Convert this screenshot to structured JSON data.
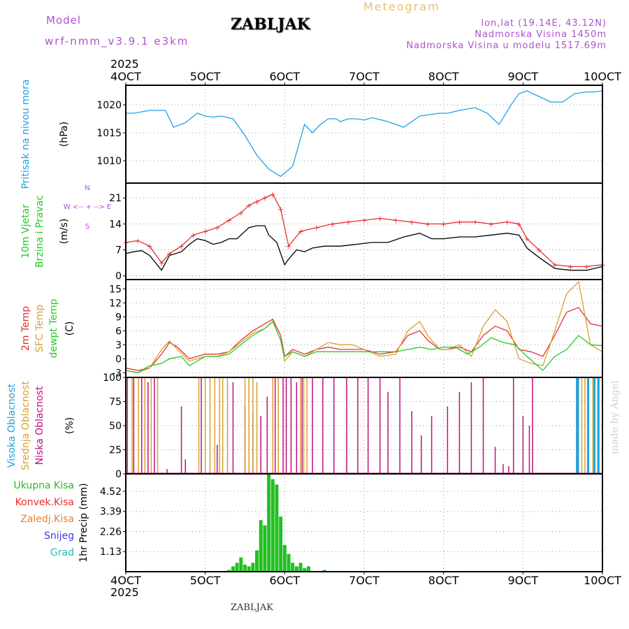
{
  "header": {
    "model_label": "Model",
    "model_name": "wrf-nmm_v3.9.1 e3km",
    "station": "ZABLJAK",
    "title": "Meteogram",
    "lonlat": "lon,lat (19.14E, 43.12N)",
    "elevation": "Nadmorska Visina 1450m",
    "model_elevation": "Nadmorska Visina u modelu 1517.69m",
    "year": "2025",
    "footer_station": "ZABLJAK",
    "watermark": "made by Angel"
  },
  "colors": {
    "pressure": "#1fa3e0",
    "wind_speed": "#000000",
    "gust": "#e83030",
    "t2m": "#e83030",
    "tsfc": "#d9a030",
    "dewpoint": "#22cc22",
    "cloud_high": "#1fa3e0",
    "cloud_mid": "#d9a030",
    "cloud_low": "#c0107a",
    "precip_total": "#22c022",
    "precip_conv": "#e83030",
    "precip_frozen": "#f08030",
    "snow": "#4040e0",
    "hail": "#20c0b0"
  },
  "chart_data": {
    "type": "line",
    "x_ticks": [
      "4OCT",
      "5OCT",
      "6OCT",
      "7OCT",
      "8OCT",
      "9OCT",
      "10OCT"
    ],
    "x_unit": "days",
    "panels": [
      {
        "id": "pressure",
        "ylabels": [
          "Pritisak na nivou mora",
          "(hPa)"
        ],
        "ylim": [
          1006,
          1023.5
        ],
        "yticks": [
          1010,
          1015,
          1020
        ],
        "series": [
          {
            "name": "pressure",
            "x": [
              0,
              0.1,
              0.3,
              0.5,
              0.6,
              0.75,
              0.9,
              1.0,
              1.1,
              1.2,
              1.35,
              1.5,
              1.65,
              1.8,
              1.95,
              2.1,
              2.25,
              2.35,
              2.45,
              2.55,
              2.65,
              2.7,
              2.8,
              2.9,
              3.0,
              3.1,
              3.3,
              3.5,
              3.7,
              3.85,
              3.95,
              4.05,
              4.2,
              4.4,
              4.55,
              4.7,
              4.85,
              4.95,
              5.05,
              5.2,
              5.35,
              5.5,
              5.65,
              5.8,
              5.9,
              6.0
            ],
            "values": [
              1018.5,
              1018.5,
              1019,
              1019,
              1016,
              1016.8,
              1018.5,
              1018,
              1017.8,
              1018,
              1017.5,
              1014.5,
              1011,
              1008.5,
              1007.2,
              1009,
              1016.5,
              1015,
              1016.5,
              1017.5,
              1017.5,
              1017,
              1017.5,
              1017.5,
              1017.3,
              1017.7,
              1017,
              1016,
              1018,
              1018.3,
              1018.5,
              1018.5,
              1019,
              1019.5,
              1018.5,
              1016.5,
              1020,
              1022,
              1022.5,
              1021.5,
              1020.5,
              1020.5,
              1022,
              1022.3,
              1022.3,
              1022.5
            ]
          }
        ]
      },
      {
        "id": "wind",
        "ylabels": [
          "10m Vjetar",
          "Brzina i Pravac",
          "(m/s)"
        ],
        "direction_legend": "N\n^\n|\nW <-- + --> E\n|\nv\nS",
        "ylim": [
          -1,
          25
        ],
        "yticks": [
          0,
          7,
          14,
          21
        ],
        "series": [
          {
            "name": "speed",
            "x": [
              0,
              0.1,
              0.2,
              0.3,
              0.45,
              0.55,
              0.7,
              0.8,
              0.9,
              1.0,
              1.1,
              1.2,
              1.3,
              1.4,
              1.5,
              1.55,
              1.65,
              1.75,
              1.8,
              1.9,
              2.0,
              2.05,
              2.15,
              2.25,
              2.35,
              2.5,
              2.7,
              2.9,
              3.1,
              3.3,
              3.5,
              3.7,
              3.85,
              4.0,
              4.2,
              4.4,
              4.6,
              4.8,
              4.95,
              5.05,
              5.2,
              5.4,
              5.6,
              5.8,
              6.0
            ],
            "values": [
              6,
              6.5,
              6.8,
              5.5,
              1.5,
              5.5,
              6.5,
              8.5,
              10,
              9.5,
              8.5,
              9,
              10,
              10,
              12,
              13,
              13.5,
              13.5,
              11,
              9,
              3,
              4.5,
              7,
              6.5,
              7.5,
              8,
              8,
              8.5,
              9,
              9,
              10.5,
              11.5,
              10,
              10,
              10.5,
              10.5,
              11,
              11.5,
              11,
              7.5,
              5,
              2,
              1.5,
              1.5,
              2.5
            ]
          },
          {
            "name": "gust",
            "x": [
              0,
              0.15,
              0.3,
              0.45,
              0.55,
              0.7,
              0.85,
              1.0,
              1.15,
              1.3,
              1.45,
              1.55,
              1.65,
              1.75,
              1.85,
              1.95,
              2.05,
              2.2,
              2.4,
              2.6,
              2.8,
              3.0,
              3.2,
              3.4,
              3.6,
              3.8,
              4.0,
              4.2,
              4.4,
              4.6,
              4.8,
              4.95,
              5.05,
              5.2,
              5.4,
              5.6,
              5.8,
              6.0
            ],
            "values": [
              9,
              9.5,
              8,
              3.5,
              6,
              8,
              11,
              12,
              13,
              15,
              17,
              19,
              20,
              21,
              22,
              18,
              8,
              12,
              13,
              14,
              14.5,
              15,
              15.5,
              15,
              14.5,
              14,
              14,
              14.5,
              14.5,
              14,
              14.5,
              14,
              10,
              7,
              3,
              2.5,
              2.5,
              3
            ]
          }
        ]
      },
      {
        "id": "temperature",
        "ylabels": [
          "2m Temp",
          "SFC Temp",
          "dewpt Temp",
          "(C)"
        ],
        "ylim": [
          -4,
          17
        ],
        "yticks": [
          -3,
          0,
          3,
          6,
          9,
          12,
          15
        ],
        "series": [
          {
            "name": "t2m",
            "x": [
              0,
              0.15,
              0.3,
              0.45,
              0.55,
              0.65,
              0.8,
              1.0,
              1.15,
              1.3,
              1.45,
              1.6,
              1.75,
              1.85,
              1.95,
              2.0,
              2.1,
              2.25,
              2.4,
              2.55,
              2.7,
              2.85,
              3.0,
              3.2,
              3.4,
              3.55,
              3.7,
              3.8,
              3.95,
              4.05,
              4.2,
              4.35,
              4.5,
              4.65,
              4.8,
              4.95,
              5.1,
              5.25,
              5.4,
              5.55,
              5.7,
              5.85,
              6.0
            ],
            "values": [
              -2,
              -2.5,
              -2,
              1,
              3.5,
              2.5,
              0,
              1,
              1,
              1.5,
              4,
              6,
              7.5,
              8.5,
              5,
              0.5,
              2,
              1,
              2,
              2.5,
              2,
              2,
              2,
              1,
              1.5,
              5,
              6,
              4,
              2,
              2,
              2.5,
              1.5,
              5,
              7,
              6,
              2,
              1.5,
              0.5,
              5,
              10,
              11,
              7.5,
              7
            ]
          },
          {
            "name": "tsfc",
            "x": [
              0,
              0.15,
              0.3,
              0.45,
              0.55,
              0.65,
              0.8,
              1.0,
              1.15,
              1.3,
              1.45,
              1.6,
              1.75,
              1.85,
              1.95,
              2.0,
              2.1,
              2.25,
              2.4,
              2.55,
              2.7,
              2.85,
              3.0,
              3.2,
              3.4,
              3.55,
              3.7,
              3.8,
              3.95,
              4.05,
              4.2,
              4.35,
              4.5,
              4.65,
              4.8,
              4.95,
              5.1,
              5.25,
              5.4,
              5.55,
              5.7,
              5.85,
              6.0
            ],
            "values": [
              -2.5,
              -3,
              -2,
              2,
              3.8,
              2,
              -0.5,
              0.5,
              0.5,
              1.5,
              3.5,
              5.5,
              6.5,
              8,
              4,
              -0.5,
              1.5,
              0.5,
              2,
              3.5,
              3,
              3,
              2,
              0.5,
              1,
              6,
              8,
              5,
              2,
              2,
              3,
              0.5,
              7,
              10.5,
              8,
              0,
              -1,
              -1.5,
              6,
              14,
              16.5,
              3,
              1.5
            ]
          },
          {
            "name": "dewpoint",
            "x": [
              0,
              0.15,
              0.3,
              0.45,
              0.55,
              0.7,
              0.8,
              1.0,
              1.15,
              1.3,
              1.45,
              1.6,
              1.75,
              1.85,
              1.95,
              2.0,
              2.1,
              2.25,
              2.4,
              2.55,
              2.7,
              2.85,
              3.0,
              3.2,
              3.4,
              3.55,
              3.7,
              3.85,
              4.0,
              4.15,
              4.3,
              4.45,
              4.6,
              4.75,
              4.9,
              5.05,
              5.15,
              5.25,
              5.4,
              5.55,
              5.7,
              5.85,
              6.0
            ],
            "values": [
              -2.5,
              -3,
              -1.5,
              -1,
              0,
              0.5,
              -1.5,
              0.5,
              0.5,
              1,
              3,
              5,
              6.5,
              8,
              4,
              0.5,
              1.5,
              0.5,
              1.5,
              1.5,
              1.5,
              1.5,
              1.5,
              1.5,
              1.5,
              2,
              2.5,
              2,
              2.5,
              2.5,
              1,
              2.5,
              4.5,
              3.5,
              3,
              0.5,
              -1,
              -2.5,
              0.5,
              2,
              5,
              3,
              2.8
            ]
          }
        ]
      },
      {
        "id": "clouds",
        "ylabels": [
          "Visoka Oblacnost",
          "Srednja Oblacnost",
          "Niska Oblacnost",
          "(%)"
        ],
        "ylim": [
          0,
          100
        ],
        "yticks": [
          0,
          25,
          50,
          75,
          100
        ],
        "series": [
          {
            "name": "low",
            "x": [
              0.02,
              0.1,
              0.2,
              0.28,
              0.36,
              0.52,
              0.7,
              0.75,
              0.95,
              1.15,
              1.35,
              1.5,
              1.6,
              1.7,
              1.78,
              1.88,
              1.98,
              2.02,
              2.08,
              2.15,
              2.22,
              2.35,
              2.48,
              2.62,
              2.78,
              2.92,
              3.05,
              3.2,
              3.3,
              3.45,
              3.6,
              3.72,
              3.85,
              4.05,
              4.2,
              4.35,
              4.5,
              4.65,
              4.75,
              4.82,
              4.88,
              5.0,
              5.08,
              5.12
            ],
            "values": [
              100,
              100,
              100,
              95,
              100,
              5,
              70,
              15,
              100,
              30,
              95,
              70,
              65,
              60,
              80,
              100,
              100,
              100,
              100,
              95,
              100,
              100,
              100,
              100,
              100,
              100,
              100,
              100,
              85,
              100,
              65,
              40,
              60,
              70,
              85,
              95,
              100,
              28,
              10,
              8,
              100,
              60,
              50,
              100
            ]
          },
          {
            "name": "mid",
            "x": [
              0.08,
              0.16,
              0.24,
              0.32,
              0.4,
              0.92,
              1.0,
              1.06,
              1.12,
              1.18,
              1.22,
              1.28,
              1.5,
              1.55,
              1.6,
              1.65,
              1.85,
              1.92,
              2.2,
              2.24,
              2.28,
              5.7,
              5.74,
              5.78,
              5.82,
              5.88,
              5.94
            ],
            "values": [
              100,
              100,
              100,
              100,
              100,
              100,
              100,
              100,
              100,
              100,
              100,
              100,
              100,
              100,
              100,
              95,
              100,
              100,
              100,
              100,
              100,
              100,
              100,
              100,
              100,
              100,
              100
            ]
          },
          {
            "name": "high",
            "x": [
              5.68,
              5.69,
              5.82,
              5.9,
              5.95
            ],
            "values": [
              100,
              100,
              100,
              100,
              100
            ]
          }
        ]
      },
      {
        "id": "precip",
        "ylabels": [
          "1hr Precip (mm)"
        ],
        "legend": [
          "Ukupna Kisa",
          "Konvek.Kisa",
          "Zaledj.Kisa",
          "Snijeg",
          "Grad"
        ],
        "ylim": [
          0,
          5.5
        ],
        "yticks": [
          1.13,
          2.26,
          3.39,
          4.52
        ],
        "series": [
          {
            "name": "total",
            "x": [
              1.3,
              1.35,
              1.4,
              1.45,
              1.5,
              1.55,
              1.6,
              1.65,
              1.7,
              1.75,
              1.8,
              1.85,
              1.9,
              1.95,
              2.0,
              2.05,
              2.1,
              2.15,
              2.2,
              2.25,
              2.3,
              2.5
            ],
            "values": [
              0.1,
              0.3,
              0.5,
              0.8,
              0.4,
              0.3,
              0.5,
              1.2,
              2.9,
              2.6,
              5.5,
              5.2,
              4.9,
              3.1,
              1.5,
              1.0,
              0.5,
              0.3,
              0.5,
              0.2,
              0.3,
              0.1
            ]
          }
        ]
      }
    ]
  }
}
